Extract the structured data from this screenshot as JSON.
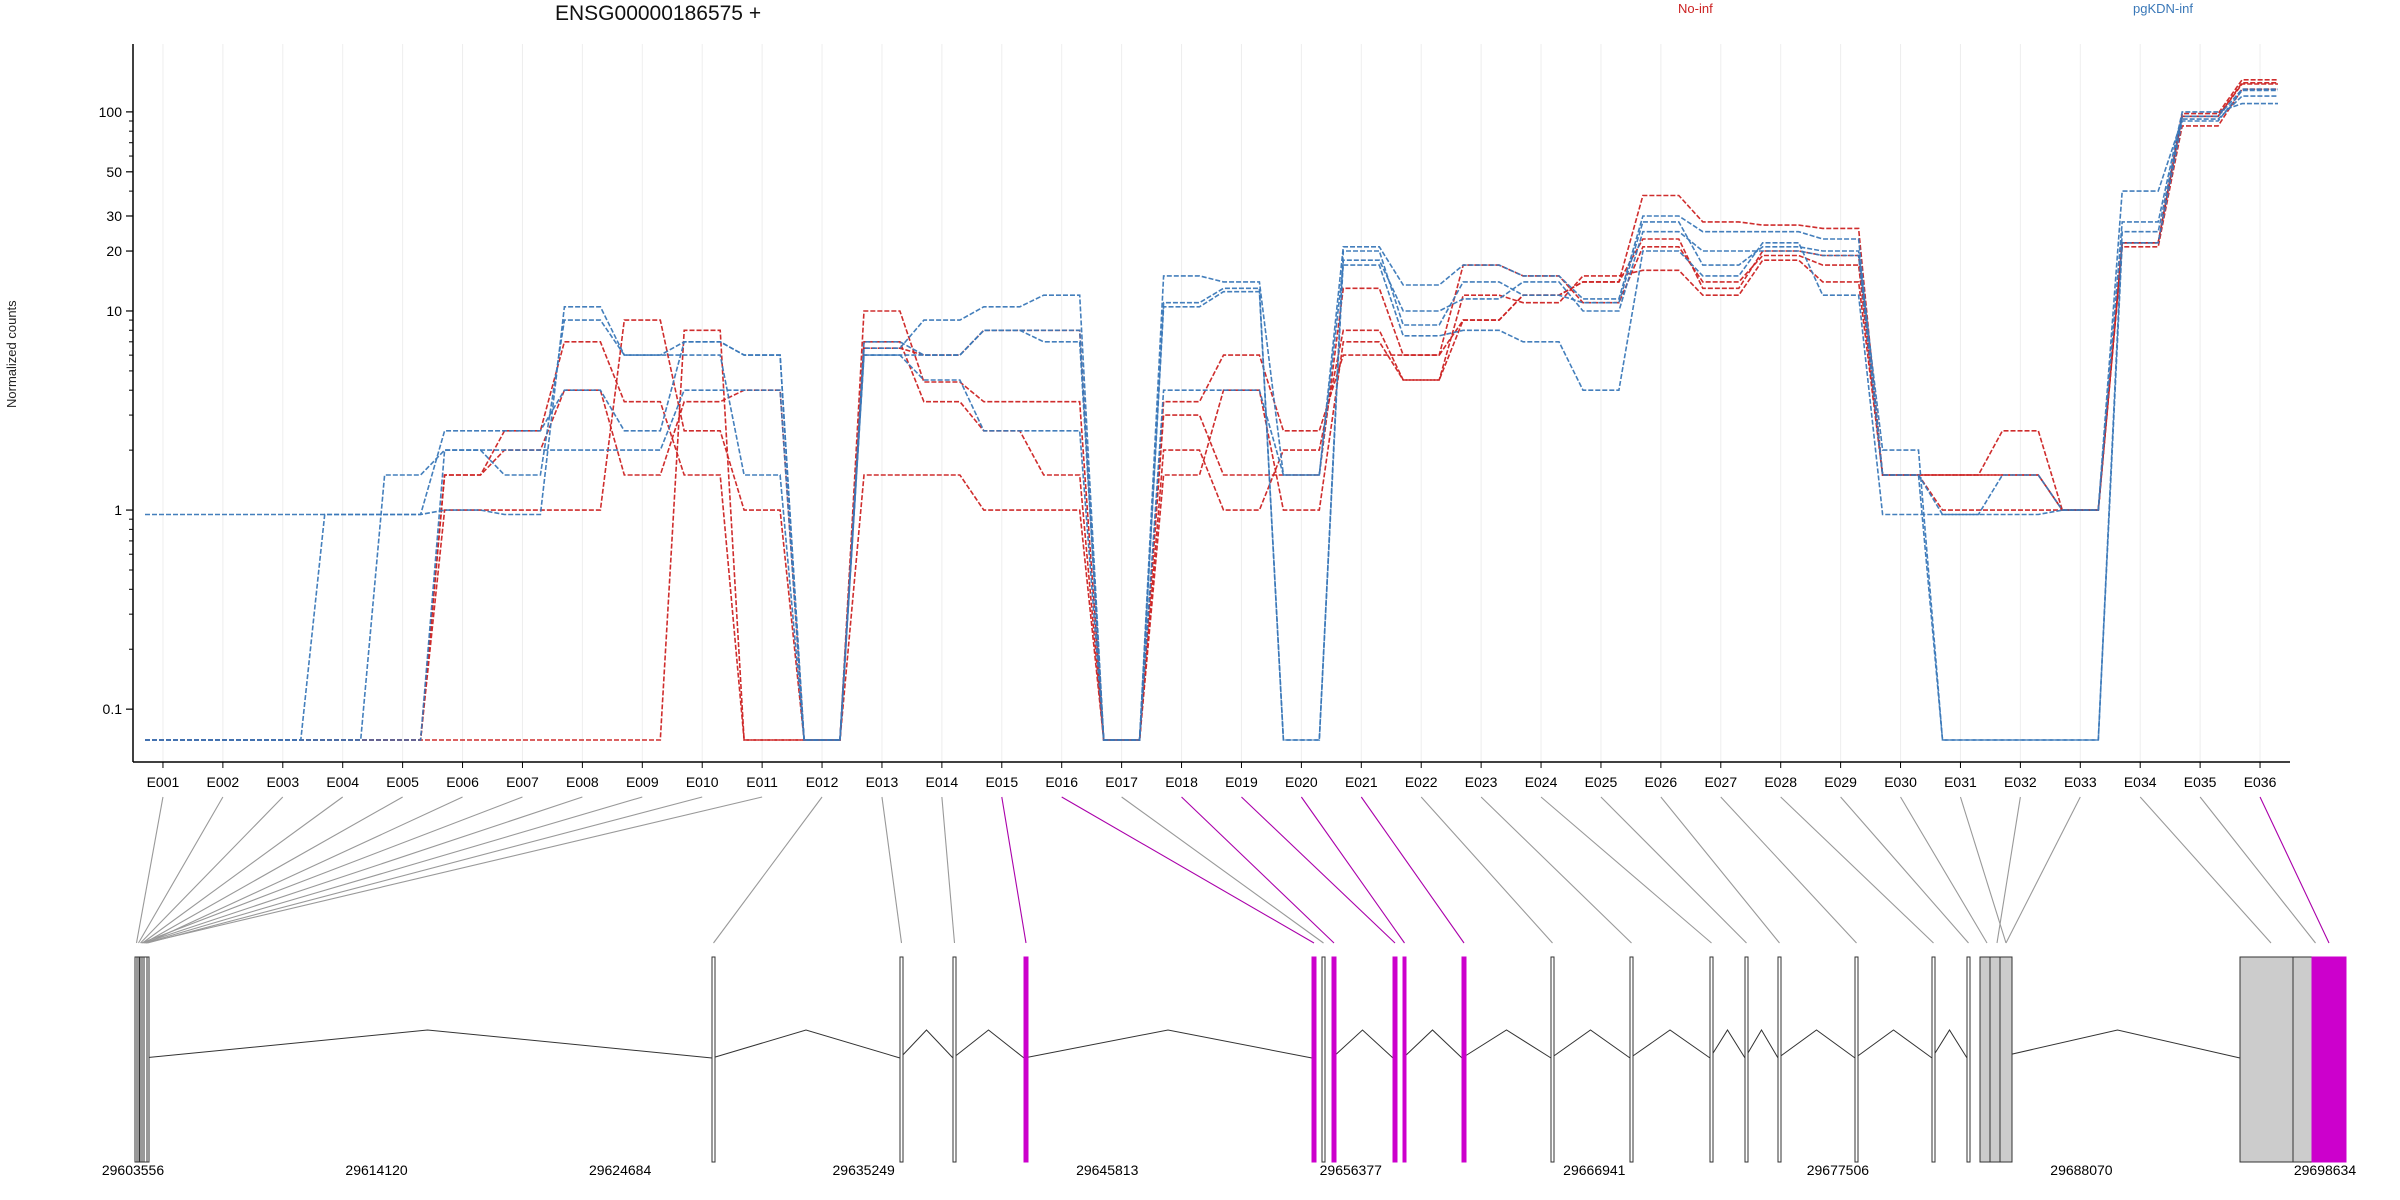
{
  "chart_data": {
    "type": "line",
    "title": "ENSG00000186575 +",
    "ylabel": "Normalized counts",
    "xlabel": "",
    "y_scale": "log",
    "ylim": [
      0.07,
      170
    ],
    "y_ticks": [
      {
        "value": 0.1,
        "label": "0.1"
      },
      {
        "value": 1,
        "label": "1"
      },
      {
        "value": 10,
        "label": "10"
      },
      {
        "value": 20,
        "label": "20"
      },
      {
        "value": 30,
        "label": "30"
      },
      {
        "value": 50,
        "label": "50"
      },
      {
        "value": 100,
        "label": "100"
      }
    ],
    "categories": [
      "E001",
      "E002",
      "E003",
      "E004",
      "E005",
      "E006",
      "E007",
      "E008",
      "E009",
      "E010",
      "E011",
      "E012",
      "E013",
      "E014",
      "E015",
      "E016",
      "E017",
      "E018",
      "E019",
      "E020",
      "E021",
      "E022",
      "E023",
      "E024",
      "E025",
      "E026",
      "E027",
      "E028",
      "E029",
      "E030",
      "E031",
      "E032",
      "E033",
      "E034",
      "E035",
      "E036"
    ],
    "legend": [
      {
        "label": "No-inf",
        "color": "#cc2222"
      },
      {
        "label": "pgKDN-inf",
        "color": "#3a78b8"
      }
    ],
    "series": [
      {
        "group": "No-inf",
        "values": [
          0.07,
          0.07,
          0.07,
          0.07,
          0.07,
          0.07,
          0.07,
          0.07,
          0.07,
          8,
          0.07,
          0.07,
          10,
          4.4,
          3.5,
          3.5,
          0.07,
          2,
          1,
          2,
          8,
          4.5,
          9,
          12,
          14,
          38,
          28,
          27,
          26,
          1.5,
          1,
          1,
          1,
          22,
          98,
          145
        ]
      },
      {
        "group": "No-inf",
        "values": [
          0.07,
          0.07,
          0.07,
          0.07,
          0.07,
          1,
          1,
          1,
          9,
          2.5,
          1,
          0.07,
          1.5,
          1.5,
          1,
          1,
          0.07,
          3,
          1.5,
          1.5,
          13,
          6,
          17,
          15,
          11,
          21,
          14,
          19,
          17,
          1.5,
          1.5,
          2.5,
          1,
          22,
          95,
          140
        ]
      },
      {
        "group": "No-inf",
        "values": [
          0.07,
          0.07,
          0.07,
          0.07,
          0.07,
          1.5,
          2.5,
          7,
          3.5,
          1.5,
          0.07,
          0.07,
          7,
          3.5,
          2.5,
          1.5,
          0.07,
          1.5,
          4,
          1,
          7,
          4.5,
          12,
          11,
          15,
          16,
          12,
          18,
          14,
          1.5,
          1.5,
          1.5,
          1,
          21,
          85,
          130
        ]
      },
      {
        "group": "No-inf",
        "values": [
          0.07,
          0.07,
          0.07,
          0.07,
          0.07,
          1.5,
          2,
          4,
          1.5,
          3.5,
          4,
          0.07,
          6.5,
          6,
          8,
          8,
          0.07,
          3.5,
          6,
          2.5,
          6,
          6,
          9,
          12,
          14,
          23,
          13,
          20,
          19,
          1.5,
          1.5,
          1.5,
          1,
          22,
          95,
          138
        ]
      },
      {
        "group": "pgKDN-inf",
        "values": [
          0.95,
          0.95,
          0.95,
          0.95,
          0.95,
          1,
          0.95,
          10.5,
          6,
          7,
          6,
          0.07,
          6.5,
          9,
          10.5,
          12,
          0.07,
          15,
          14,
          1.5,
          21,
          13.5,
          17,
          15,
          11.5,
          30,
          25,
          25,
          23,
          1.5,
          0.95,
          0.95,
          1,
          28,
          100,
          110
        ]
      },
      {
        "group": "pgKDN-inf",
        "values": [
          0.07,
          0.07,
          0.07,
          0.95,
          0.95,
          2.5,
          2.5,
          4,
          2.5,
          7,
          6,
          0.07,
          7,
          6,
          8,
          7,
          0.07,
          11,
          13,
          0.07,
          20,
          8.5,
          14,
          12,
          11,
          28,
          17,
          21,
          20,
          2,
          0.07,
          0.07,
          0.07,
          25,
          95,
          130
        ]
      },
      {
        "group": "pgKDN-inf",
        "values": [
          0.07,
          0.07,
          0.07,
          0.07,
          1.5,
          2,
          1.5,
          9,
          6,
          6,
          1.5,
          0.07,
          6,
          6,
          8,
          8,
          0.07,
          10.5,
          12.5,
          0.07,
          18,
          10,
          11.5,
          14,
          10,
          25,
          20,
          20,
          19,
          1.5,
          0.07,
          0.07,
          0.07,
          22,
          90,
          128
        ]
      },
      {
        "group": "pgKDN-inf",
        "values": [
          0.07,
          0.07,
          0.07,
          0.07,
          0.07,
          2,
          2,
          2,
          2,
          4,
          4,
          0.07,
          6,
          4.5,
          2.5,
          2.5,
          0.07,
          4,
          4,
          1.5,
          17,
          7.5,
          8,
          7,
          4,
          20,
          15,
          22,
          12,
          0.95,
          0.95,
          1.5,
          1,
          40,
          92,
          120
        ]
      }
    ],
    "gene_model": {
      "coordinate_ticks": [
        "29603556",
        "29614120",
        "29624684",
        "29635249",
        "29645813",
        "29656377",
        "29666941",
        "29677506",
        "29688070",
        "29698634"
      ],
      "highlighted_exons": [
        "E015",
        "E016",
        "E018",
        "E019",
        "E020",
        "E021",
        "E036"
      ],
      "highlight_color": "#cc00cc"
    }
  }
}
